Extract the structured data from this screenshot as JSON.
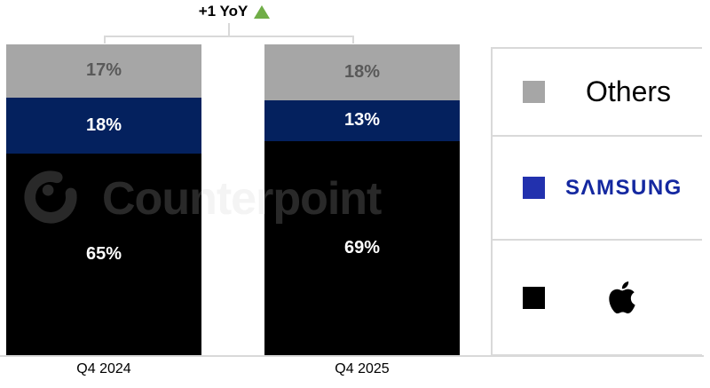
{
  "annotation": {
    "label": "+1 YoY",
    "arrow": "up",
    "arrow_color": "#70ad47"
  },
  "watermark": {
    "text": "Counterpoint"
  },
  "legend": {
    "items": [
      {
        "name": "Others",
        "label": "Others",
        "swatch_color": "#a6a6a6"
      },
      {
        "name": "Samsung",
        "label": "SAMSUNG",
        "display": "SΛMSUNG",
        "swatch_color": "#2231ae",
        "text_color": "#1428a0"
      },
      {
        "name": "Apple",
        "label": "Apple",
        "swatch_color": "#000000",
        "icon": "apple-logo"
      }
    ]
  },
  "chart_data": {
    "type": "bar",
    "stacked": true,
    "orientation": "vertical",
    "unit": "%",
    "title": "",
    "categories": [
      "Q4 2024",
      "Q4 2025"
    ],
    "series": [
      {
        "name": "Others",
        "color": "#a6a6a6",
        "label_color": "#595959",
        "values": [
          17,
          18
        ]
      },
      {
        "name": "Samsung",
        "color": "#04215e",
        "label_color": "#ffffff",
        "values": [
          18,
          13
        ]
      },
      {
        "name": "Apple",
        "color": "#000000",
        "label_color": "#ffffff",
        "values": [
          65,
          69
        ]
      }
    ],
    "annotation": "+1 YoY",
    "ylim": [
      0,
      100
    ],
    "gridlines": false,
    "legend_position": "right"
  }
}
